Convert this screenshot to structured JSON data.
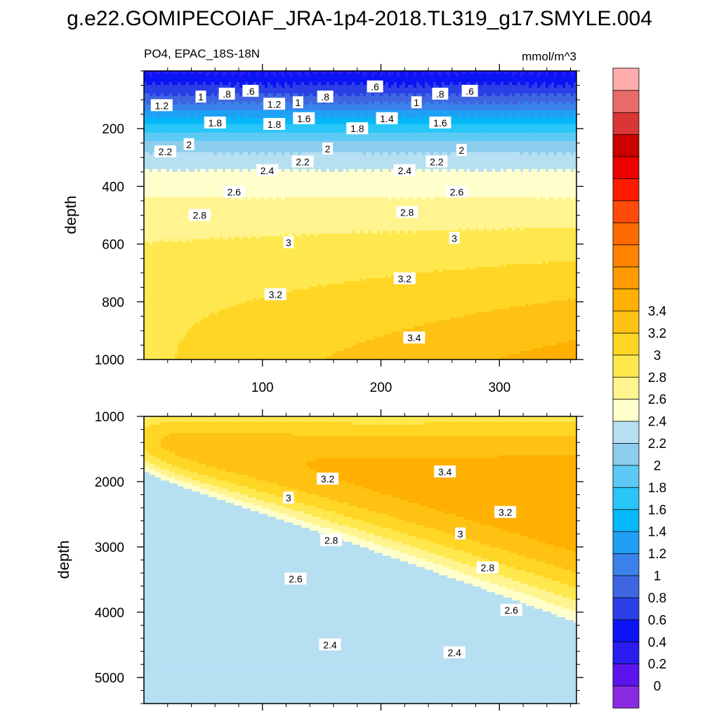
{
  "figure": {
    "title": "g.e22.GOMIPECOIAF_JRA-1p4-2018.TL319_g17.SMYLE.004"
  },
  "chart_data": {
    "type": "heatmap",
    "variable": "PO4",
    "region": "EPAC_18S-18N",
    "units": "mmol/m^3",
    "x_range": [
      0,
      365
    ],
    "x_ticks": [
      100,
      200,
      300
    ],
    "colorbar": {
      "levels": [
        0,
        0.2,
        0.4,
        0.6,
        0.8,
        1,
        1.2,
        1.4,
        1.6,
        1.8,
        2,
        2.2,
        2.4,
        2.6,
        2.8,
        3,
        3.2,
        3.4
      ],
      "tick_labels": [
        "0",
        "0.2",
        "0.4",
        "0.6",
        "0.8",
        "1",
        "1.2",
        "1.4",
        "1.6",
        "1.8",
        "2",
        "2.2",
        "2.4",
        "2.6",
        "2.8",
        "3",
        "3.2",
        "3.4"
      ],
      "colors": [
        "#8a2be2",
        "#5b14ee",
        "#2a1cf0",
        "#0a14f5",
        "#2a40e6",
        "#3f66e0",
        "#3a82ea",
        "#1fa0f5",
        "#05b8f8",
        "#29c6f8",
        "#5ccaf5",
        "#8ccdee",
        "#b6dff2",
        "#ffffcc",
        "#fff48f",
        "#ffe84e",
        "#ffd625",
        "#ffc212",
        "#ffb000",
        "#ff9a00",
        "#ff8200",
        "#ff6a00",
        "#ff4a0a",
        "#ff1a00",
        "#ee0000",
        "#cc0000",
        "#dc3535",
        "#ea6a6a",
        "#fcacac"
      ]
    },
    "panels": [
      {
        "subtitle_left": "PO4, EPAC_18S-18N",
        "subtitle_right": "mmol/m^3",
        "ylabel": "depth",
        "ylim": [
          0,
          1000
        ],
        "y_ticks": [
          200,
          400,
          600,
          800,
          1000
        ],
        "contour_labels": [
          {
            "text": "1.2",
            "x": 15,
            "depth": 120
          },
          {
            "text": "1",
            "x": 48,
            "depth": 90
          },
          {
            "text": ".8",
            "x": 70,
            "depth": 80
          },
          {
            "text": ".6",
            "x": 90,
            "depth": 70
          },
          {
            "text": "1.2",
            "x": 110,
            "depth": 115
          },
          {
            "text": "1",
            "x": 130,
            "depth": 110
          },
          {
            "text": ".8",
            "x": 153,
            "depth": 90
          },
          {
            "text": ".6",
            "x": 195,
            "depth": 55
          },
          {
            "text": "1.4",
            "x": 205,
            "depth": 165
          },
          {
            "text": "1",
            "x": 230,
            "depth": 110
          },
          {
            "text": ".8",
            "x": 250,
            "depth": 80
          },
          {
            "text": ".6",
            "x": 275,
            "depth": 70
          },
          {
            "text": "1.8",
            "x": 60,
            "depth": 180
          },
          {
            "text": "1.8",
            "x": 110,
            "depth": 185
          },
          {
            "text": "1.6",
            "x": 135,
            "depth": 165
          },
          {
            "text": "1.8",
            "x": 180,
            "depth": 200
          },
          {
            "text": "1.6",
            "x": 250,
            "depth": 180
          },
          {
            "text": "2.2",
            "x": 18,
            "depth": 280
          },
          {
            "text": "2",
            "x": 38,
            "depth": 255
          },
          {
            "text": "2.2",
            "x": 134,
            "depth": 315
          },
          {
            "text": "2",
            "x": 155,
            "depth": 270
          },
          {
            "text": "2",
            "x": 268,
            "depth": 275
          },
          {
            "text": "2.2",
            "x": 247,
            "depth": 315
          },
          {
            "text": "2.4",
            "x": 104,
            "depth": 345
          },
          {
            "text": "2.4",
            "x": 220,
            "depth": 345
          },
          {
            "text": "2.6",
            "x": 76,
            "depth": 420
          },
          {
            "text": "2.6",
            "x": 264,
            "depth": 420
          },
          {
            "text": "2.8",
            "x": 47,
            "depth": 500
          },
          {
            "text": "2.8",
            "x": 222,
            "depth": 490
          },
          {
            "text": "3",
            "x": 122,
            "depth": 595
          },
          {
            "text": "3",
            "x": 262,
            "depth": 580
          },
          {
            "text": "3.2",
            "x": 111,
            "depth": 775
          },
          {
            "text": "3.2",
            "x": 220,
            "depth": 720
          },
          {
            "text": "3.4",
            "x": 228,
            "depth": 925
          }
        ]
      },
      {
        "ylabel": "depth",
        "ylim": [
          1000,
          5400
        ],
        "y_ticks": [
          1000,
          2000,
          3000,
          4000,
          5000
        ],
        "contour_labels": [
          {
            "text": "3.2",
            "x": 155,
            "depth": 1960
          },
          {
            "text": "3.4",
            "x": 254,
            "depth": 1850
          },
          {
            "text": "3",
            "x": 122,
            "depth": 2250
          },
          {
            "text": "3.2",
            "x": 305,
            "depth": 2470
          },
          {
            "text": "3",
            "x": 267,
            "depth": 2800
          },
          {
            "text": "2.8",
            "x": 158,
            "depth": 2900
          },
          {
            "text": "2.8",
            "x": 290,
            "depth": 3320
          },
          {
            "text": "2.6",
            "x": 128,
            "depth": 3490
          },
          {
            "text": "2.6",
            "x": 310,
            "depth": 3970
          },
          {
            "text": "2.4",
            "x": 157,
            "depth": 4500
          },
          {
            "text": "2.4",
            "x": 262,
            "depth": 4620
          }
        ]
      }
    ]
  }
}
